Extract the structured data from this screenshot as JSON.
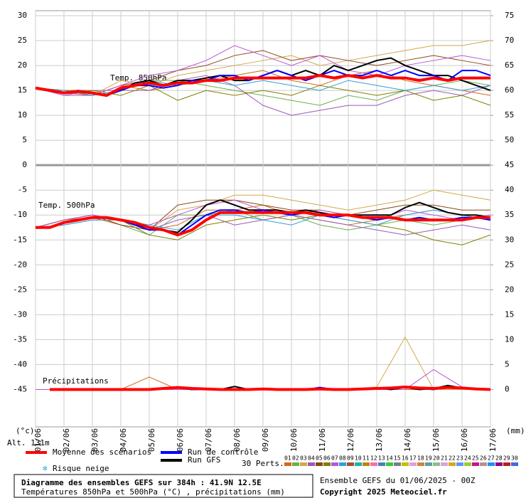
{
  "chart_data": {
    "type": "line",
    "title": "Diagramme des ensembles GEFS sur 384h : 41.9N 12.5E",
    "subtitle": "Températures 850hPa et 500hPa (°C) , précipitations (mm)",
    "run_info": "Ensemble GEFS du 01/06/2025 - 00Z",
    "copyright": "Copyright 2025 Meteociel.fr",
    "altitude": "Alt. 131m",
    "y_unit": "(°c)",
    "y2_unit": "(mm)",
    "snow_label": "Risque neige",
    "panels": {
      "t850": "Temp. 850hPa",
      "t500": "Temp. 500hPa",
      "precip": "Précipitations"
    },
    "xlim": [
      0,
      16
    ],
    "xticks": [
      {
        "value": 0,
        "label": "01/06"
      },
      {
        "value": 1,
        "label": "02/06"
      },
      {
        "value": 2,
        "label": "03/06"
      },
      {
        "value": 3,
        "label": "04/06"
      },
      {
        "value": 4,
        "label": "05/06"
      },
      {
        "value": 5,
        "label": "06/06"
      },
      {
        "value": 6,
        "label": "07/06"
      },
      {
        "value": 7,
        "label": "08/06"
      },
      {
        "value": 8,
        "label": "09/06"
      },
      {
        "value": 9,
        "label": "10/06"
      },
      {
        "value": 10,
        "label": "11/06"
      },
      {
        "value": 11,
        "label": "12/06"
      },
      {
        "value": 12,
        "label": "13/06"
      },
      {
        "value": 13,
        "label": "14/06"
      },
      {
        "value": 14,
        "label": "15/06"
      },
      {
        "value": 15,
        "label": "16/06"
      },
      {
        "value": 16,
        "label": "17/06"
      }
    ],
    "ylim": [
      -52.5,
      31
    ],
    "yticks": [
      -45,
      -40,
      -35,
      -30,
      -25,
      -20,
      -15,
      -10,
      -5,
      0,
      5,
      10,
      15,
      20,
      25,
      30
    ],
    "y2lim": [
      -7.5,
      76
    ],
    "y2ticks": [
      0,
      5,
      10,
      15,
      20,
      25,
      30,
      35,
      40,
      45,
      50,
      55,
      60,
      65,
      70,
      75
    ],
    "grid": true,
    "x": [
      0,
      0.5,
      1,
      1.5,
      2,
      2.5,
      3,
      3.5,
      4,
      4.5,
      5,
      5.5,
      6,
      6.5,
      7,
      7.5,
      8,
      8.5,
      9,
      9.5,
      10,
      10.5,
      11,
      11.5,
      12,
      12.5,
      13,
      13.5,
      14,
      14.5,
      15,
      15.5,
      16
    ],
    "x_daily": [
      0,
      1,
      2,
      3,
      4,
      5,
      6,
      7,
      8,
      9,
      10,
      11,
      12,
      13,
      14,
      15,
      16
    ],
    "series": [
      {
        "name": "Moyenne des scénarios",
        "color": "#ff0000",
        "width": 4,
        "t850": [
          15.5,
          15,
          14.5,
          14.8,
          14.5,
          14,
          15.5,
          16,
          16.5,
          16,
          16.5,
          16.5,
          17,
          17,
          17.5,
          17.5,
          17.5,
          17.5,
          17.5,
          17.5,
          18,
          17.5,
          18,
          17.5,
          18,
          17.5,
          17.5,
          17,
          17.5,
          17,
          17.5,
          17.5,
          17.5
        ],
        "t500": [
          -12.5,
          -12.5,
          -11.5,
          -11,
          -10.5,
          -10.5,
          -11,
          -11.5,
          -12.5,
          -13,
          -14,
          -13,
          -11,
          -9.5,
          -9.5,
          -9.5,
          -9.5,
          -9.5,
          -9.5,
          -9.5,
          -10,
          -10,
          -10,
          -10.5,
          -10.5,
          -10.5,
          -11,
          -11,
          -11,
          -11,
          -11,
          -10.5,
          -10.5
        ],
        "precip": [
          null,
          0,
          0,
          0,
          0,
          0,
          0,
          0,
          0,
          0.2,
          0.4,
          0.2,
          0.1,
          0,
          0,
          0,
          0.1,
          0,
          0,
          0,
          0.1,
          0,
          0,
          0.1,
          0.2,
          0.3,
          0.5,
          0.3,
          0.2,
          0.4,
          0.3,
          0.1,
          0
        ]
      },
      {
        "name": "Run de contrôle",
        "color": "#0000ff",
        "width": 2,
        "t850": [
          15.5,
          15,
          14.5,
          15,
          14.5,
          14,
          15,
          16,
          16,
          15.5,
          16,
          17,
          17,
          18,
          18,
          17,
          18,
          19,
          18,
          17,
          18,
          19,
          18,
          18,
          19,
          18,
          19,
          18,
          18,
          17,
          19,
          19,
          18
        ],
        "t500": [
          -12.5,
          -12.5,
          -11.5,
          -11,
          -10.5,
          -10.5,
          -11,
          -12,
          -13,
          -13,
          -14,
          -12,
          -10,
          -9,
          -9,
          -9.5,
          -9,
          -9.5,
          -10,
          -9.5,
          -10,
          -10.5,
          -10,
          -10.5,
          -11,
          -10.5,
          -11,
          -10.5,
          -11,
          -11,
          -10.5,
          -10.5,
          -11
        ],
        "precip": [
          null,
          0,
          0,
          0,
          0,
          0,
          0,
          0,
          0,
          0.3,
          0.5,
          0,
          0,
          0,
          0,
          0,
          0.2,
          0,
          0,
          0,
          0.4,
          0,
          0,
          0,
          0.1,
          0.2,
          0.6,
          0.2,
          0,
          0.5,
          0.2,
          0,
          0
        ]
      },
      {
        "name": "Run GFS",
        "color": "#000000",
        "width": 2,
        "t850": [
          15.5,
          15,
          14.5,
          14.8,
          14.5,
          14,
          15,
          16.5,
          17,
          16,
          17,
          17,
          17.5,
          18,
          17,
          17,
          18,
          19,
          18,
          19,
          18,
          20,
          19,
          20,
          21,
          21.5,
          20,
          19,
          18,
          18,
          17,
          16,
          15
        ],
        "t500": [
          -12.5,
          -12.5,
          -11.5,
          -11,
          -10.5,
          -10.5,
          -11,
          -12,
          -12.5,
          -13,
          -13.5,
          -11,
          -8,
          -7,
          -8,
          -9,
          -9,
          -9,
          -9.5,
          -9,
          -9.5,
          -10,
          -10,
          -10,
          -10,
          -10,
          -8.5,
          -7.5,
          -8.5,
          -9.5,
          -10,
          -10,
          -10.5
        ],
        "precip": [
          null,
          0,
          0,
          0,
          0,
          0,
          0,
          0,
          0,
          0.2,
          0.3,
          0,
          0,
          0,
          0.6,
          0,
          0,
          0,
          0,
          0,
          0,
          0,
          0,
          0,
          0.3,
          0,
          0.4,
          0,
          0.2,
          0.8,
          0.3,
          0,
          0
        ]
      }
    ],
    "perturbations": {
      "label": "30 Perts.",
      "members": [
        {
          "name": "01",
          "color": "#d2691e",
          "t850": [
            15.5,
            14.5,
            14,
            16,
            15,
            16,
            17,
            18,
            19,
            17,
            16,
            18,
            19,
            17,
            16,
            15,
            14
          ],
          "t500": [
            -12.5,
            -11,
            -10.5,
            -12,
            -13,
            -12,
            -9,
            -9,
            -8,
            -10,
            -11,
            -12,
            -11,
            -10,
            -9,
            -10,
            -11
          ],
          "precip": [
            0,
            0,
            0,
            0,
            2.5,
            0,
            0,
            0,
            0,
            0,
            0,
            0,
            0,
            0,
            0,
            0,
            0
          ]
        },
        {
          "name": "02",
          "color": "#6ab04c",
          "t850": [
            15.5,
            15,
            14,
            15,
            17,
            17,
            16,
            15,
            14,
            13,
            12,
            14,
            13,
            15,
            16,
            17,
            16
          ],
          "t500": [
            -12.5,
            -11,
            -10,
            -12,
            -14,
            -10,
            -10,
            -9,
            -11,
            -10,
            -12,
            -13,
            -12,
            -11,
            -12,
            -11,
            -10
          ]
        },
        {
          "name": "03",
          "color": "#d4a84a",
          "t850": [
            15.5,
            15,
            14,
            17,
            16,
            18,
            19,
            20,
            21,
            22,
            20,
            21,
            22,
            23,
            24,
            24,
            25
          ],
          "t500": [
            -12.5,
            -11,
            -10,
            -11,
            -13,
            -9,
            -8,
            -6,
            -6,
            -7,
            -8,
            -9,
            -8,
            -7,
            -5,
            -6,
            -7
          ],
          "precip": [
            0,
            0,
            0,
            0,
            0,
            0,
            0,
            0,
            0,
            0,
            0,
            0,
            0.5,
            10.5,
            0,
            0,
            0
          ]
        },
        {
          "name": "04",
          "color": "#9b59b6",
          "t850": [
            15.5,
            14,
            15,
            15,
            15,
            17,
            18,
            16,
            12,
            10,
            11,
            12,
            12,
            14,
            15,
            14,
            16
          ],
          "t500": [
            -12.5,
            -12,
            -11,
            -11,
            -13,
            -11,
            -10,
            -12,
            -11,
            -10,
            -11,
            -12,
            -13,
            -14,
            -13,
            -12,
            -13
          ]
        },
        {
          "name": "05",
          "color": "#8b4513",
          "t850": [
            15.5,
            15,
            14,
            16,
            17,
            19,
            20,
            22,
            23,
            21,
            22,
            21,
            20,
            21,
            22,
            21,
            20
          ],
          "t500": [
            -12.5,
            -11,
            -10,
            -12,
            -13,
            -8,
            -7,
            -7,
            -8,
            -9,
            -9,
            -10,
            -9,
            -8,
            -8,
            -9,
            -9
          ]
        },
        {
          "name": "06",
          "color": "#808000",
          "t850": [
            15.5,
            15,
            15,
            14,
            16,
            13,
            15,
            14,
            15,
            14,
            16,
            15,
            14,
            15,
            13,
            14,
            12
          ],
          "t500": [
            -12.5,
            -11,
            -10,
            -11,
            -14,
            -15,
            -12,
            -11,
            -10,
            -11,
            -10,
            -11,
            -12,
            -13,
            -15,
            -16,
            -14
          ]
        },
        {
          "name": "07",
          "color": "#ba55d3",
          "t850": [
            15.5,
            14,
            14,
            16,
            18,
            19,
            21,
            24,
            22,
            20,
            22,
            19,
            18,
            20,
            21,
            22,
            21
          ],
          "t500": [
            -12.5,
            -11,
            -10,
            -11,
            -12,
            -10,
            -8,
            -7,
            -9,
            -10,
            -9,
            -10,
            -11,
            -9,
            -10,
            -11,
            -10
          ],
          "precip": [
            0,
            0,
            0,
            0,
            0,
            0,
            0,
            0,
            0,
            0,
            0,
            0,
            0,
            0,
            4,
            0.5,
            0
          ]
        },
        {
          "name": "08",
          "color": "#2f9fd6",
          "t850": [
            15.5,
            15,
            14,
            15,
            17,
            16,
            17,
            16,
            17,
            16,
            15,
            17,
            16,
            15,
            16,
            15,
            16
          ],
          "t500": [
            -12.5,
            -12,
            -11,
            -11,
            -12,
            -13,
            -10,
            -10,
            -11,
            -12,
            -10,
            -11,
            -12,
            -10,
            -9,
            -10,
            -11
          ]
        },
        {
          "name": "09",
          "color": "#a0522d"
        },
        {
          "name": "10",
          "color": "#20b2aa"
        },
        {
          "name": "11",
          "color": "#b8860b"
        },
        {
          "name": "12",
          "color": "#ff69b4"
        },
        {
          "name": "13",
          "color": "#4682b4"
        },
        {
          "name": "14",
          "color": "#32cd32"
        },
        {
          "name": "15",
          "color": "#708090"
        },
        {
          "name": "16",
          "color": "#c0c000"
        },
        {
          "name": "17",
          "color": "#e0a0e0"
        },
        {
          "name": "18",
          "color": "#cd853f"
        },
        {
          "name": "19",
          "color": "#5f9ea0"
        },
        {
          "name": "20",
          "color": "#8fbc8f"
        },
        {
          "name": "21",
          "color": "#dda0dd"
        },
        {
          "name": "22",
          "color": "#daa520"
        },
        {
          "name": "23",
          "color": "#6495ed"
        },
        {
          "name": "24",
          "color": "#9acd32"
        },
        {
          "name": "25",
          "color": "#c71585"
        },
        {
          "name": "26",
          "color": "#bc8f8f"
        },
        {
          "name": "27",
          "color": "#1e90ff"
        },
        {
          "name": "28",
          "color": "#8b008b"
        },
        {
          "name": "29",
          "color": "#b22222"
        },
        {
          "name": "30",
          "color": "#4169e1"
        }
      ]
    }
  }
}
